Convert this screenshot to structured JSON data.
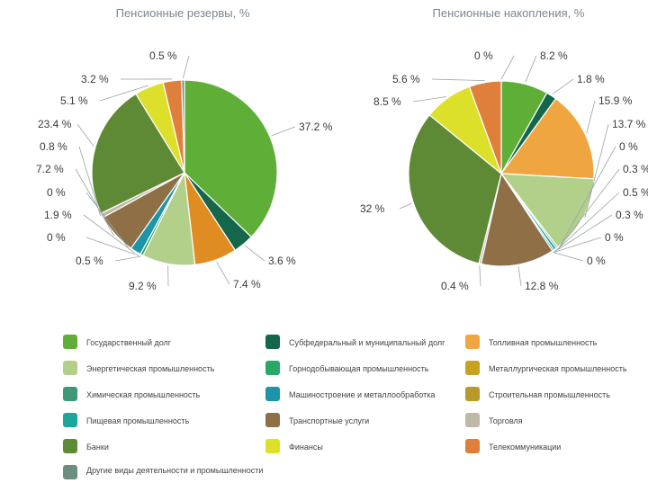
{
  "chart_data": [
    {
      "type": "pie",
      "title": "Пенсионные резервы, %",
      "slices": [
        {
          "label": "37.2 %",
          "value": 37.2,
          "color": "#5fae37"
        },
        {
          "label": "3.6 %",
          "value": 3.6,
          "color": "#14674a"
        },
        {
          "label": "7.4 %",
          "value": 7.4,
          "color": "#df8d22"
        },
        {
          "label": "9.2 %",
          "value": 9.2,
          "color": "#b3d08a"
        },
        {
          "label": "0.5 %",
          "value": 0.5,
          "color": "#27a866"
        },
        {
          "label": "0 %",
          "value": 0.0,
          "color": "#c6a21e"
        },
        {
          "label": "1.9 %",
          "value": 1.9,
          "color": "#1d95a8"
        },
        {
          "label": "0 %",
          "value": 0.0,
          "color": "#b8992a"
        },
        {
          "label": "7.2 %",
          "value": 7.2,
          "color": "#8f6f45"
        },
        {
          "label": "0.8 %",
          "value": 0.8,
          "color": "#c0b8a7"
        },
        {
          "label": "23.4 %",
          "value": 23.4,
          "color": "#5e8a35"
        },
        {
          "label": "5.1 %",
          "value": 5.1,
          "color": "#dde02a"
        },
        {
          "label": "3.2 %",
          "value": 3.2,
          "color": "#df7f3c"
        },
        {
          "label": "0.5 %",
          "value": 0.5,
          "color": "#6c8f7d"
        }
      ]
    },
    {
      "type": "pie",
      "title": "Пенсионные накопления, %",
      "slices": [
        {
          "label": "8.2 %",
          "value": 8.2,
          "color": "#5fae37"
        },
        {
          "label": "1.8 %",
          "value": 1.8,
          "color": "#14674a"
        },
        {
          "label": "15.9 %",
          "value": 15.9,
          "color": "#f0a640"
        },
        {
          "label": "13.7 %",
          "value": 13.7,
          "color": "#b3d08a"
        },
        {
          "label": "0 %",
          "value": 0.0,
          "color": "#c6a21e"
        },
        {
          "label": "0.3 %",
          "value": 0.3,
          "color": "#3f9978"
        },
        {
          "label": "0.5 %",
          "value": 0.5,
          "color": "#1aa89a"
        },
        {
          "label": "0.3 %",
          "value": 0.3,
          "color": "#1d95a8"
        },
        {
          "label": "0 %",
          "value": 0.0,
          "color": "#b8992a"
        },
        {
          "label": "0 %",
          "value": 0.0,
          "color": "#27a866"
        },
        {
          "label": "12.8 %",
          "value": 12.8,
          "color": "#8f6f45"
        },
        {
          "label": "0.4 %",
          "value": 0.4,
          "color": "#c0b8a7"
        },
        {
          "label": "32 %",
          "value": 32.0,
          "color": "#5e8a35"
        },
        {
          "label": "8.5 %",
          "value": 8.5,
          "color": "#dde02a"
        },
        {
          "label": "5.6 %",
          "value": 5.6,
          "color": "#df7f3c"
        },
        {
          "label": "0 %",
          "value": 0.0,
          "color": "#6c8f7d"
        }
      ]
    }
  ],
  "legend": [
    {
      "label": "Государственный долг",
      "color": "#5fae37"
    },
    {
      "label": "Субфедеральный и муниципальный долг",
      "color": "#14674a"
    },
    {
      "label": "Топливная промышленность",
      "color": "#f0a640"
    },
    {
      "label": "Энергетическая промышленность",
      "color": "#b3d08a"
    },
    {
      "label": "Горнодобывающая промышленность",
      "color": "#27a866"
    },
    {
      "label": "Металлургическая промышленность",
      "color": "#c6a21e"
    },
    {
      "label": "Химическая промышленность",
      "color": "#3f9978"
    },
    {
      "label": "Машиностроение и металлообработка",
      "color": "#1d95a8"
    },
    {
      "label": "Строительная промышленность",
      "color": "#b8992a"
    },
    {
      "label": "Пищевая промышленность",
      "color": "#1aa89a"
    },
    {
      "label": "Транспортные услуги",
      "color": "#8f6f45"
    },
    {
      "label": "Торговля",
      "color": "#c0b8a7"
    },
    {
      "label": "Банки",
      "color": "#5e8a35"
    },
    {
      "label": "Финансы",
      "color": "#dde02a"
    },
    {
      "label": "Телекоммуникации",
      "color": "#df7f3c"
    },
    {
      "label": "Другие виды деятельности и промышленности",
      "color": "#6c8f7d"
    }
  ]
}
